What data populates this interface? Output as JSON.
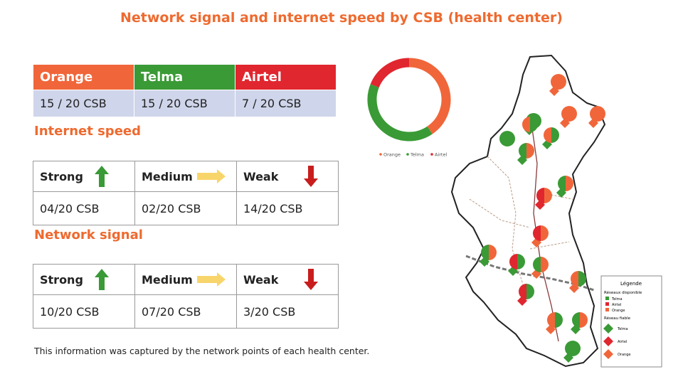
{
  "title": "Network signal and internet speed by CSB (health center)",
  "colors": {
    "orange": "#f0663a",
    "telma": "#3a9a36",
    "airtel": "#e0262f",
    "accent": "#ee6a2f"
  },
  "networks": {
    "headers": [
      "Orange",
      "Telma",
      "Airtel"
    ],
    "values": [
      "15 / 20 CSB",
      "15 / 20 CSB",
      "7 / 20 CSB"
    ]
  },
  "internet_speed": {
    "title": "Internet speed",
    "labels": [
      "Strong",
      "Medium",
      "Weak"
    ],
    "icons": [
      "arrow-up-icon",
      "arrow-right-icon",
      "arrow-down-icon"
    ],
    "values": [
      "04/20 CSB",
      " 02/20 CSB",
      "14/20 CSB"
    ]
  },
  "network_signal": {
    "title": "Network signal",
    "labels": [
      "Strong",
      "Medium",
      "Weak"
    ],
    "icons": [
      "arrow-up-icon",
      "arrow-right-icon",
      "arrow-down-icon"
    ],
    "values": [
      "10/20 CSB",
      " 07/20 CSB",
      "3/20 CSB"
    ]
  },
  "note": "This information was captured by the network points of each health center.",
  "chart_data": {
    "type": "pie",
    "title": "",
    "categories": [
      "Orange",
      "Telma",
      "Airtel"
    ],
    "values": [
      15,
      15,
      7
    ],
    "colors": [
      "#f0663a",
      "#3a9a36",
      "#e0262f"
    ],
    "legend": "bottom",
    "legend_labels": [
      "Orange",
      "Telma",
      "Airtel"
    ]
  },
  "map": {
    "legend_title": "Légende",
    "section1": "Réseaux disponible",
    "items1": [
      "Telma",
      "Airtel",
      "Orange"
    ],
    "section2": "Réseau fiable",
    "items2": [
      "Telma",
      "Airtel",
      "Orange"
    ]
  }
}
